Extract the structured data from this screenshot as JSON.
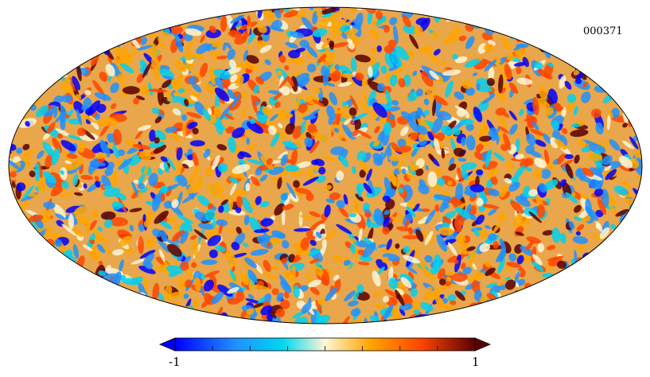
{
  "map": {
    "projection": "mollweide",
    "id_label": "000371",
    "colormap": "planck",
    "colormap_stops": [
      "#0000ff",
      "#1e90ff",
      "#00d0f0",
      "#fff6d5",
      "#ffa500",
      "#ff4500",
      "#5a0000"
    ]
  },
  "colorbar": {
    "min_label": "-1",
    "max_label": "1",
    "range": [
      -1,
      1
    ],
    "tick_count": 9
  }
}
